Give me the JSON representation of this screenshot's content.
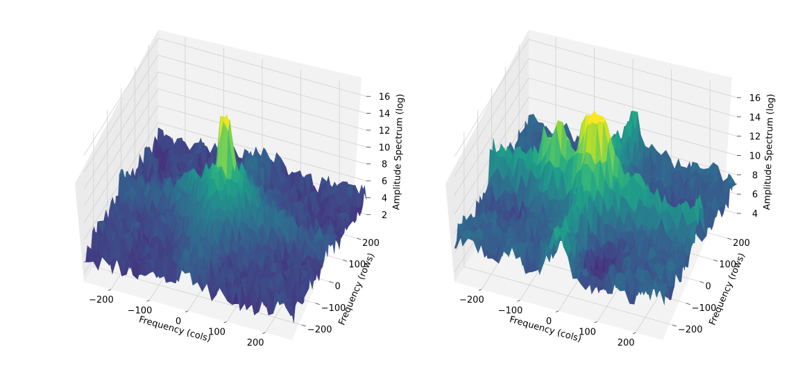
{
  "chart_data": [
    {
      "type": "surface3d",
      "panel": "left",
      "xlabel": "Frequency (cols)",
      "ylabel": "Frequency (rows)",
      "zlabel": "Amplitude Spectrum (log)",
      "xticks": [
        -200,
        -100,
        0,
        100,
        200
      ],
      "yticks": [
        -200,
        -100,
        0,
        100,
        200
      ],
      "zticks": [
        2,
        4,
        6,
        8,
        10,
        12,
        14,
        16
      ],
      "xlim": [
        -270,
        270
      ],
      "ylim": [
        -270,
        270
      ],
      "zlim": [
        1,
        17
      ],
      "grid": true,
      "colormap": "viridis",
      "colors": [
        "#440154",
        "#3b528b",
        "#21918c",
        "#5ec962",
        "#fde725"
      ],
      "surface": {
        "baseline": 4.2,
        "noise": 1.6,
        "peak": {
          "x": 0,
          "y": 0,
          "height": 16.5,
          "width": 10
        },
        "center_glow": {
          "height": 4.5,
          "width": 75
        },
        "cross_ridge_height": 1.6,
        "cross_ridge_width": 30,
        "blobs": []
      }
    },
    {
      "type": "surface3d",
      "panel": "right",
      "xlabel": "Frequency (cols)",
      "ylabel": "Frequency (rows)",
      "zlabel": "Amplitude Spectrum (log)",
      "xticks": [
        -200,
        -100,
        0,
        100,
        200
      ],
      "yticks": [
        -200,
        -100,
        0,
        100,
        200
      ],
      "zticks": [
        4,
        6,
        8,
        10,
        12,
        14,
        16
      ],
      "xlim": [
        -270,
        270
      ],
      "ylim": [
        -270,
        270
      ],
      "zlim": [
        3,
        17
      ],
      "grid": true,
      "colormap": "viridis",
      "colors": [
        "#440154",
        "#3b528b",
        "#21918c",
        "#5ec962",
        "#fde725"
      ],
      "surface": {
        "baseline": 7.2,
        "noise": 1.4,
        "peak": {
          "x": 0,
          "y": 0,
          "height": 15.5,
          "width": 14
        },
        "center_glow": {
          "height": 3.0,
          "width": 60
        },
        "cross_ridge_height": 3.8,
        "cross_ridge_width": 22,
        "blobs": [
          {
            "x": -110,
            "y": 0,
            "height": 3.2,
            "width": 30
          },
          {
            "x": 60,
            "y": -160,
            "height": -2.5,
            "width": 50
          },
          {
            "x": 180,
            "y": 80,
            "height": -2.2,
            "width": 40
          },
          {
            "x": -80,
            "y": 170,
            "height": -1.8,
            "width": 45
          },
          {
            "x": -200,
            "y": -60,
            "height": -1.5,
            "width": 40
          }
        ]
      }
    }
  ]
}
